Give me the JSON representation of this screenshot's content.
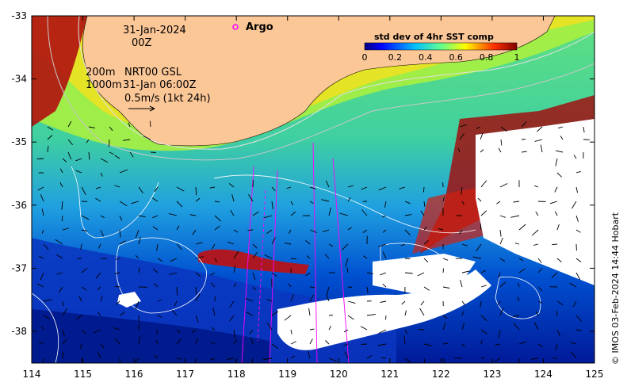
{
  "annotations": {
    "date": "31-Jan-2024",
    "hour": "00Z",
    "isobath_200": "200m",
    "isobath_1000": "1000m",
    "currents_source": "NRT00 GSL",
    "currents_time": "31-Jan 06:00Z",
    "scale_vector": "0.5m/s (1kt 24h)",
    "argo_label": "Argo",
    "credit": "© IMOS 03-Feb-2024 14:44 Hobart"
  },
  "colorbar": {
    "title": "std dev of 4hr SST comp",
    "tick_labels": [
      "0",
      "0.2",
      "0.4",
      "0.6",
      "0.8",
      "1"
    ],
    "colors": [
      "#00007f",
      "#0000ff",
      "#0080ff",
      "#00e0ff",
      "#40ffb0",
      "#a0ff40",
      "#ffff00",
      "#ffa000",
      "#ff2000",
      "#7f0000"
    ]
  },
  "axes": {
    "x_ticks": [
      "114",
      "115",
      "116",
      "117",
      "118",
      "119",
      "120",
      "121",
      "122",
      "123",
      "124",
      "125"
    ],
    "y_ticks": [
      "-33",
      "-34",
      "-35",
      "-36",
      "-37",
      "-38"
    ]
  },
  "colors": {
    "land": "#fcc797",
    "cloud": "#ffffff",
    "argo_marker": "#ff00ff"
  }
}
